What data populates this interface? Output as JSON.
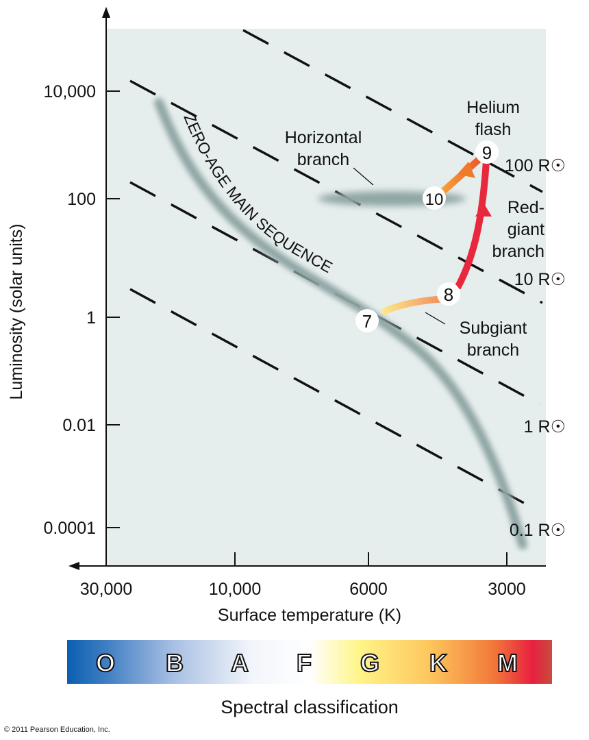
{
  "chart_data": {
    "type": "scatter",
    "xlabel": "Surface temperature (K)",
    "ylabel": "Luminosity (solar units)",
    "x_scale": "log, reversed",
    "y_scale": "log",
    "x_ticks": [
      "30,000",
      "10,000",
      "6000",
      "3000"
    ],
    "y_ticks": [
      "10,000",
      "100",
      "1",
      "0.01",
      "0.0001"
    ],
    "radius_lines": [
      "100 R☉",
      "10 R☉",
      "1 R☉",
      "0.1 R☉"
    ],
    "main_sequence_label": "ZERO-AGE MAIN SEQUENCE",
    "annotations": {
      "horizontal_branch": [
        "Horizontal",
        "branch"
      ],
      "helium_flash": [
        "Helium",
        "flash"
      ],
      "red_giant_branch": [
        "Red-",
        "giant",
        "branch"
      ],
      "subgiant_branch": [
        "Subgiant",
        "branch"
      ]
    },
    "stages": [
      {
        "label": "7",
        "temperature_K": 5800,
        "luminosity": 1
      },
      {
        "label": "8",
        "temperature_K": 4200,
        "luminosity": 2
      },
      {
        "label": "9",
        "temperature_K": 3500,
        "luminosity": 400
      },
      {
        "label": "10",
        "temperature_K": 4600,
        "luminosity": 100
      }
    ],
    "spectral_classes": [
      "O",
      "B",
      "A",
      "F",
      "G",
      "K",
      "M"
    ],
    "spectral_label": "Spectral classification",
    "colors": {
      "panel": "#e6eeed",
      "track_red": "#e8283c",
      "track_orange": "#f07a2a",
      "track_yellow": "#fde98a",
      "main_sequence": "#8fa6a4"
    }
  },
  "copyright": "© 2011 Pearson Education, Inc."
}
